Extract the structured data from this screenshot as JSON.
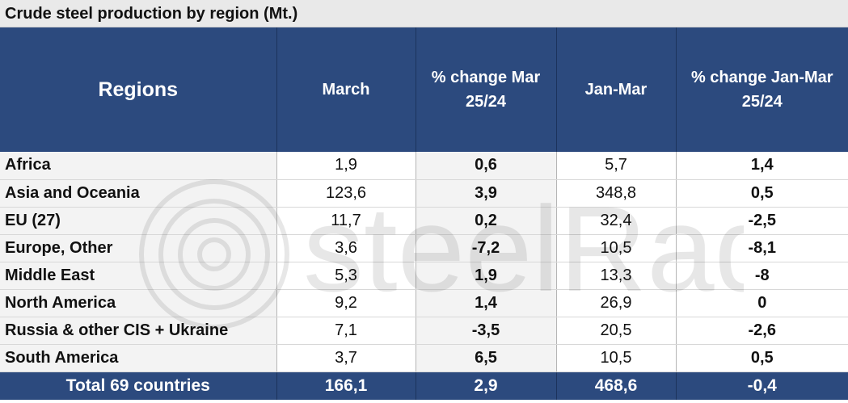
{
  "title": "Crude steel production by region (Mt.)",
  "chart_data": {
    "type": "table",
    "title": "Crude steel production by region (Mt.)",
    "columns": [
      "Regions",
      "March",
      "% change Mar 25/24",
      "Jan-Mar",
      "% change Jan-Mar 25/24"
    ],
    "rows": [
      {
        "region": "Africa",
        "march": "1,9",
        "pct_mar": "0,6",
        "jan_mar": "5,7",
        "pct_jan_mar": "1,4"
      },
      {
        "region": "Asia and Oceania",
        "march": "123,6",
        "pct_mar": "3,9",
        "jan_mar": "348,8",
        "pct_jan_mar": "0,5"
      },
      {
        "region": "EU (27)",
        "march": "11,7",
        "pct_mar": "0,2",
        "jan_mar": "32,4",
        "pct_jan_mar": "-2,5"
      },
      {
        "region": "Europe, Other",
        "march": "3,6",
        "pct_mar": "-7,2",
        "jan_mar": "10,5",
        "pct_jan_mar": "-8,1"
      },
      {
        "region": "Middle East",
        "march": "5,3",
        "pct_mar": "1,9",
        "jan_mar": "13,3",
        "pct_jan_mar": "-8"
      },
      {
        "region": "North America",
        "march": "9,2",
        "pct_mar": "1,4",
        "jan_mar": "26,9",
        "pct_jan_mar": "0"
      },
      {
        "region": "Russia & other CIS + Ukraine",
        "march": "7,1",
        "pct_mar": "-3,5",
        "jan_mar": "20,5",
        "pct_jan_mar": "-2,6"
      },
      {
        "region": "South America",
        "march": "3,7",
        "pct_mar": "6,5",
        "jan_mar": "10,5",
        "pct_jan_mar": "0,5"
      }
    ],
    "total": {
      "label": "Total 69 countries",
      "march": "166,1",
      "pct_mar": "2,9",
      "jan_mar": "468,6",
      "pct_jan_mar": "-0,4"
    }
  },
  "watermark": {
    "text": "steelRadar"
  },
  "colors": {
    "header_bg": "#2c4a7e",
    "header_text": "#ffffff",
    "title_bg": "#e9e9e9",
    "row_band": "#f3f3f3"
  }
}
